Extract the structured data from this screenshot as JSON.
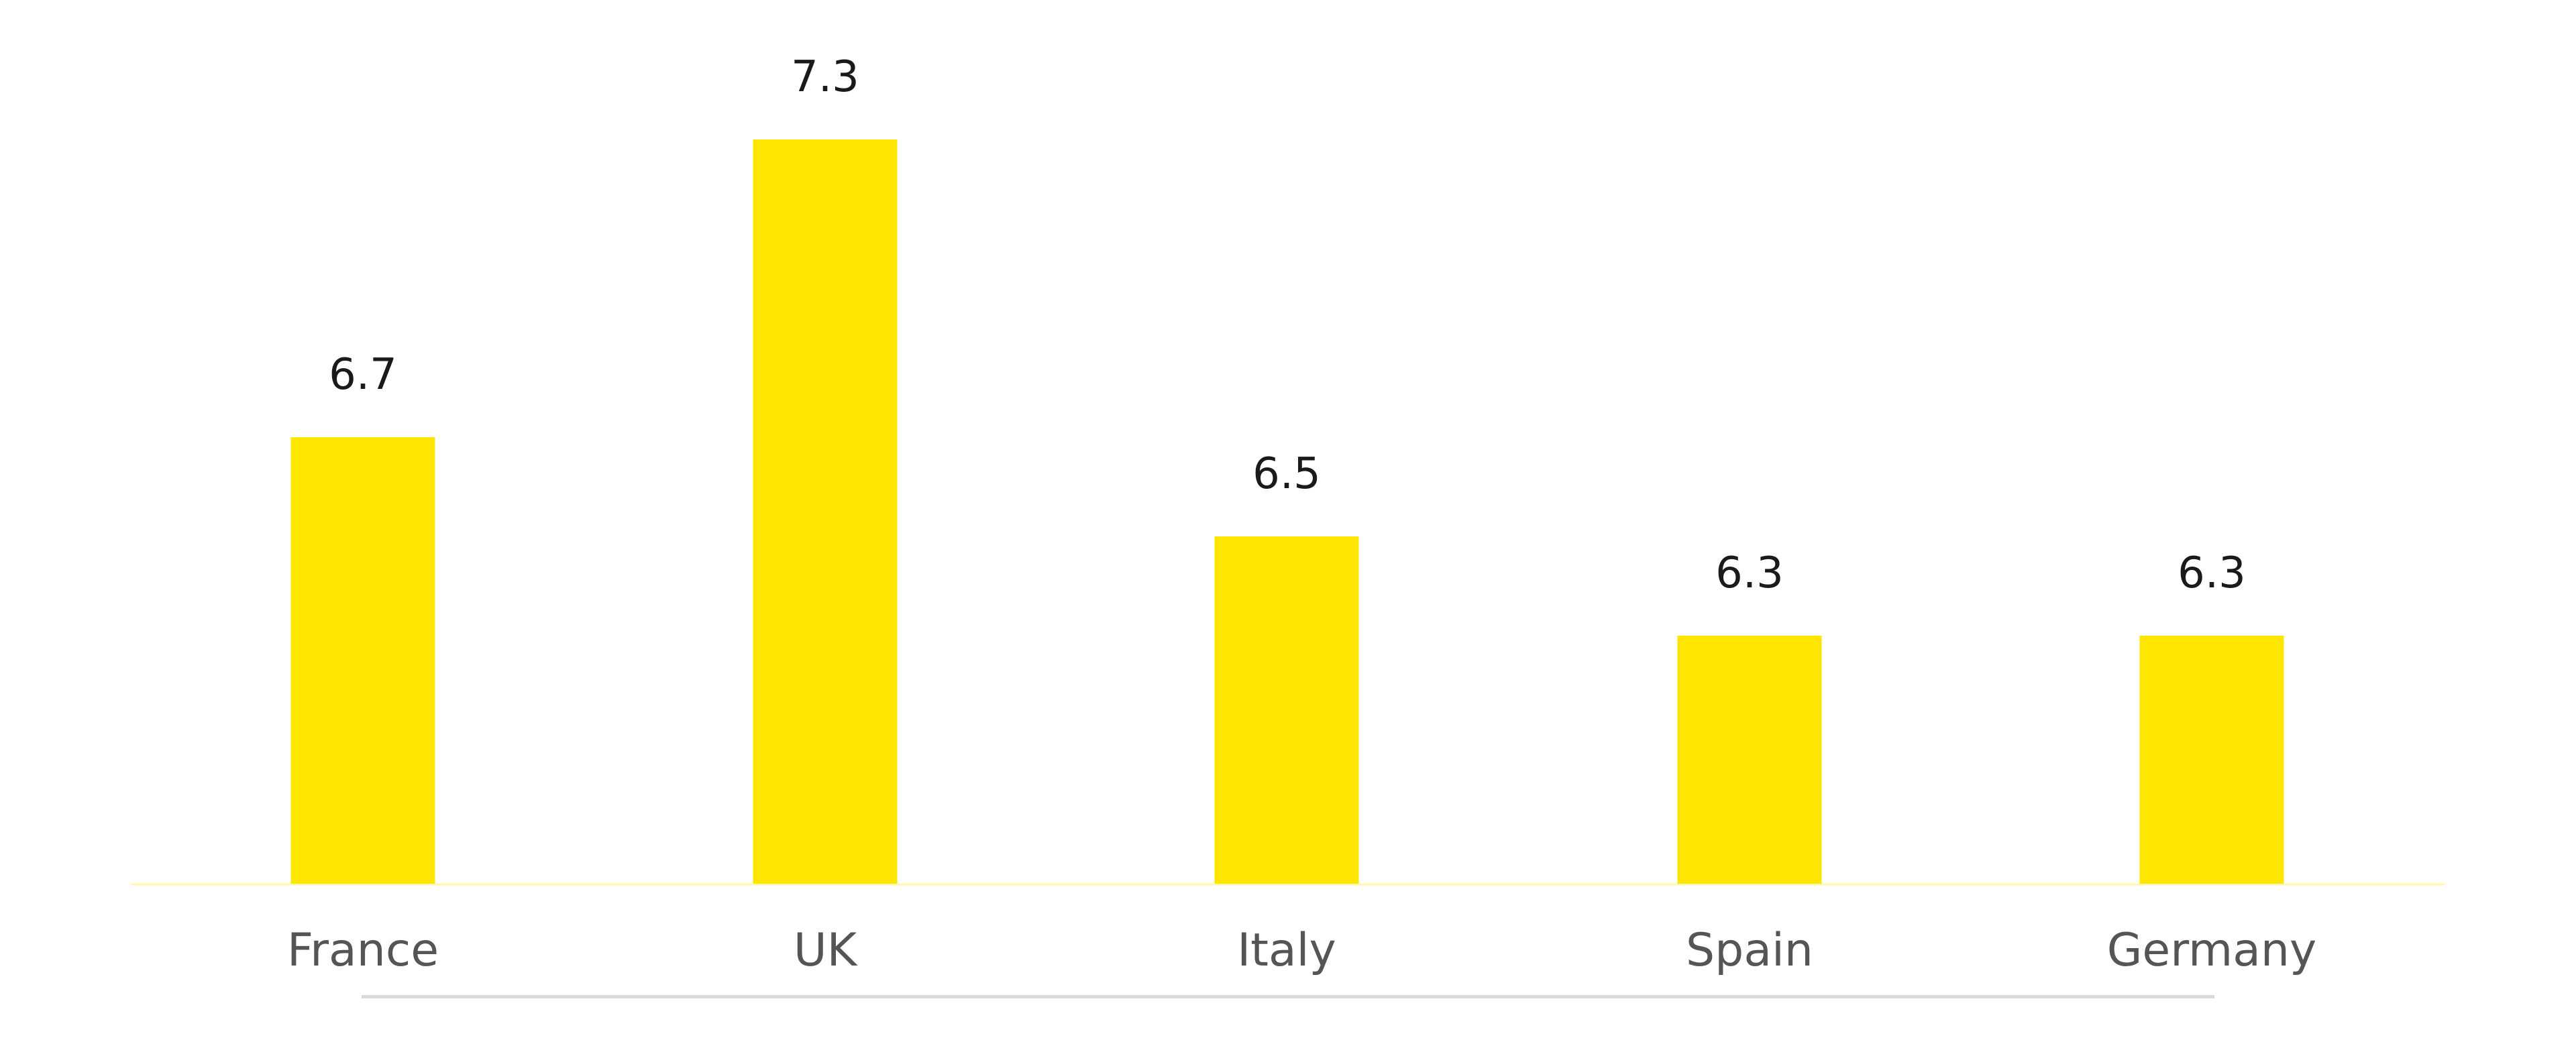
{
  "chart_data": {
    "type": "bar",
    "categories": [
      "France",
      "UK",
      "Italy",
      "Spain",
      "Germany"
    ],
    "values": [
      6.7,
      7.3,
      6.5,
      6.3,
      6.3
    ],
    "data_labels": [
      "6.7",
      "7.3",
      "6.5",
      "6.3",
      "6.3"
    ],
    "title": "",
    "xlabel": "",
    "ylabel": "",
    "ylim": [
      5.8,
      7.5
    ],
    "grid": false,
    "legend": "none",
    "colors": {
      "bar": "#FFE600",
      "axis": "#FFF7B0",
      "label": "#555555",
      "value_label": "#1a1a1a",
      "underline": "#D9D9D9"
    }
  }
}
